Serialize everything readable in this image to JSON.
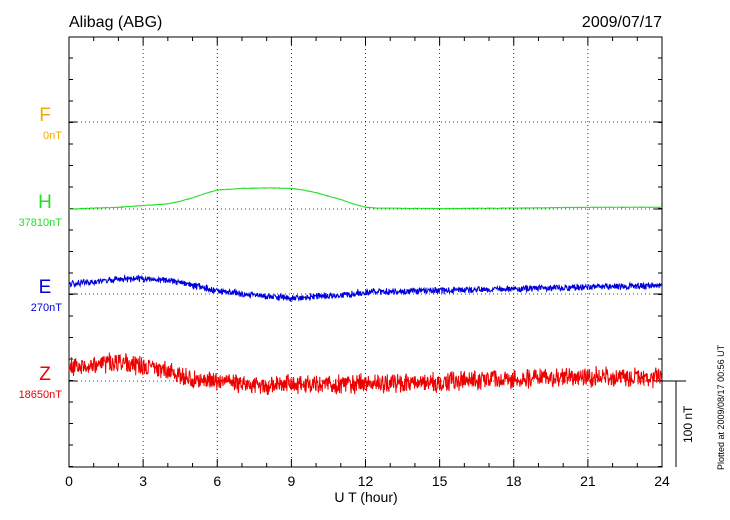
{
  "chart_data": {
    "type": "line",
    "title_left": "Alibag (ABG)",
    "title_right": "2009/07/17",
    "xlabel": "U T (hour)",
    "xlim": [
      0,
      24
    ],
    "x_ticks": [
      "0",
      "3",
      "6",
      "9",
      "12",
      "15",
      "18",
      "21",
      "24"
    ],
    "grid": "dotted",
    "scale_label": "100 nT",
    "scale_nT": 100,
    "footnote": "Plotted at 2009/08/17 00:56 UT",
    "series": [
      {
        "name": "F",
        "baseline_label": "0nT",
        "color": "#f2a900",
        "noise_nT": 0,
        "points": []
      },
      {
        "name": "H",
        "baseline_label": "37810nT",
        "color": "#22dd22",
        "noise_nT": 0.4,
        "points": [
          [
            0,
            0
          ],
          [
            1,
            1
          ],
          [
            2,
            2
          ],
          [
            3,
            4
          ],
          [
            4,
            6
          ],
          [
            4.5,
            9
          ],
          [
            5,
            13
          ],
          [
            5.5,
            18
          ],
          [
            6,
            22
          ],
          [
            7,
            24
          ],
          [
            8,
            24.5
          ],
          [
            9,
            24
          ],
          [
            9.5,
            22
          ],
          [
            10,
            19
          ],
          [
            10.5,
            15
          ],
          [
            11,
            11
          ],
          [
            11.5,
            6
          ],
          [
            12,
            2
          ],
          [
            12.5,
            1
          ],
          [
            15,
            0.5
          ],
          [
            18,
            1
          ],
          [
            21,
            2
          ],
          [
            24,
            2
          ]
        ]
      },
      {
        "name": "E",
        "baseline_label": "270nT",
        "color": "#0000dd",
        "noise_nT": 4.5,
        "points": [
          [
            0,
            12
          ],
          [
            1,
            14
          ],
          [
            2,
            17
          ],
          [
            3,
            18
          ],
          [
            4,
            16
          ],
          [
            5,
            10
          ],
          [
            6,
            4
          ],
          [
            7,
            0
          ],
          [
            8,
            -3
          ],
          [
            9,
            -5
          ],
          [
            10,
            -3
          ],
          [
            11,
            -2
          ],
          [
            12,
            2
          ],
          [
            13,
            3
          ],
          [
            15,
            4
          ],
          [
            18,
            6
          ],
          [
            21,
            8
          ],
          [
            24,
            10
          ]
        ]
      },
      {
        "name": "Z",
        "baseline_label": "18650nT",
        "color": "#ee0000",
        "noise_nT": 13,
        "points": [
          [
            0,
            16
          ],
          [
            1,
            20
          ],
          [
            2,
            22
          ],
          [
            3,
            18
          ],
          [
            4,
            10
          ],
          [
            5,
            3
          ],
          [
            6,
            0
          ],
          [
            7,
            -3
          ],
          [
            8,
            -6
          ],
          [
            9,
            -2
          ],
          [
            10,
            -4
          ],
          [
            11,
            -5
          ],
          [
            12,
            -3
          ],
          [
            13,
            -2
          ],
          [
            15,
            -1
          ],
          [
            18,
            2
          ],
          [
            21,
            5
          ],
          [
            24,
            4
          ]
        ]
      }
    ]
  }
}
